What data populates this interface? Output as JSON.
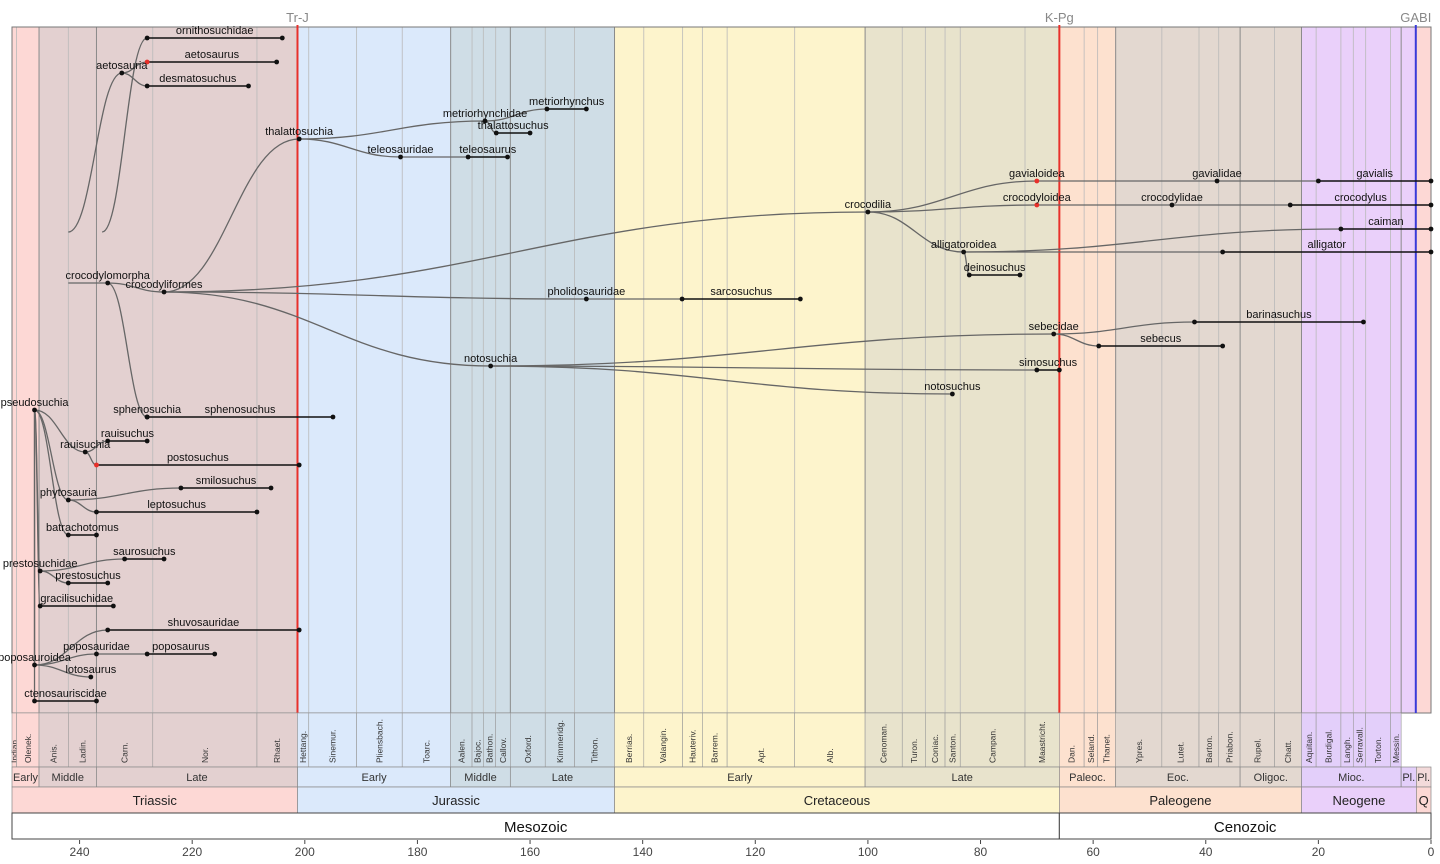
{
  "axis": {
    "ticks": [
      240,
      220,
      200,
      180,
      160,
      140,
      120,
      100,
      80,
      60,
      40,
      20,
      0
    ],
    "range_ma": [
      252.0,
      0.0
    ]
  },
  "events": [
    {
      "label": "Tr-J",
      "age": 201.3,
      "color": "#e8302a"
    },
    {
      "label": "K-Pg",
      "age": 66.0,
      "color": "#e8302a"
    },
    {
      "label": "GABI",
      "age": 2.7,
      "color": "#3a3ad8"
    }
  ],
  "eras": [
    {
      "label": "Mesozoic",
      "start": 252.0,
      "end": 66.0
    },
    {
      "label": "Cenozoic",
      "start": 66.0,
      "end": 0
    }
  ],
  "periods": [
    {
      "label": "Triassic",
      "start": 252.0,
      "end": 201.3,
      "color": "#fdd8d5",
      "tint": "#e3d0d0"
    },
    {
      "label": "Jurassic",
      "start": 201.3,
      "end": 145.0,
      "color": "#dbe9fb",
      "tint": "#cfdde6"
    },
    {
      "label": "Cretaceous",
      "start": 145.0,
      "end": 66.0,
      "color": "#fdf4cc",
      "tint": "#e8e3cc"
    },
    {
      "label": "Paleogene",
      "start": 66.0,
      "end": 23.0,
      "color": "#fde1cf",
      "tint": "#e3d8d0"
    },
    {
      "label": "Neogene",
      "start": 23.0,
      "end": 2.6,
      "color": "#ead0fa",
      "tint": "#e3cffa"
    },
    {
      "label": "Q",
      "start": 2.6,
      "end": 0,
      "color": "#fdd8d5",
      "tint": "#f3dada"
    }
  ],
  "epochs": [
    {
      "label": "Early",
      "start": 252.0,
      "end": 247.2,
      "color": "#fdd8d5"
    },
    {
      "label": "Middle",
      "start": 247.2,
      "end": 237.0,
      "color": "#e3d0d0"
    },
    {
      "label": "Late",
      "start": 237.0,
      "end": 201.3,
      "color": "#e3d0d0"
    },
    {
      "label": "Early",
      "start": 201.3,
      "end": 174.1,
      "color": "#dbe9fb"
    },
    {
      "label": "Middle",
      "start": 174.1,
      "end": 163.5,
      "color": "#cfdde6"
    },
    {
      "label": "Late",
      "start": 163.5,
      "end": 145.0,
      "color": "#cfdde6"
    },
    {
      "label": "Early",
      "start": 145.0,
      "end": 100.5,
      "color": "#fdf4cc"
    },
    {
      "label": "Late",
      "start": 100.5,
      "end": 66.0,
      "color": "#e8e3cc"
    },
    {
      "label": "Paleoc.",
      "start": 66.0,
      "end": 56.0,
      "color": "#fde1cf"
    },
    {
      "label": "Eoc.",
      "start": 56.0,
      "end": 33.9,
      "color": "#e3d8d0"
    },
    {
      "label": "Oligoc.",
      "start": 33.9,
      "end": 23.0,
      "color": "#e3d8d0"
    },
    {
      "label": "Mioc.",
      "start": 23.0,
      "end": 5.3,
      "color": "#e3cffa"
    },
    {
      "label": "Pl.",
      "start": 5.3,
      "end": 2.6,
      "color": "#e3cffa"
    },
    {
      "label": "Pl.",
      "start": 2.6,
      "end": 0,
      "color": "#f3dada"
    }
  ],
  "stages": [
    {
      "label": "Indian",
      "start": 252.0,
      "end": 251.2
    },
    {
      "label": "Olenek.",
      "start": 251.2,
      "end": 247.2
    },
    {
      "label": "Anis.",
      "start": 247.2,
      "end": 242.0
    },
    {
      "label": "Ladin.",
      "start": 242.0,
      "end": 237.0
    },
    {
      "label": "Carn.",
      "start": 237.0,
      "end": 227.0
    },
    {
      "label": "Nor.",
      "start": 227.0,
      "end": 208.5
    },
    {
      "label": "Rhaet.",
      "start": 208.5,
      "end": 201.3
    },
    {
      "label": "Hettang.",
      "start": 201.3,
      "end": 199.3
    },
    {
      "label": "Sinemur.",
      "start": 199.3,
      "end": 190.8
    },
    {
      "label": "Pliensbach.",
      "start": 190.8,
      "end": 182.7
    },
    {
      "label": "Toarc.",
      "start": 182.7,
      "end": 174.1
    },
    {
      "label": "Aalen.",
      "start": 174.1,
      "end": 170.3
    },
    {
      "label": "Bajoc.",
      "start": 170.3,
      "end": 168.3
    },
    {
      "label": "Bathon.",
      "start": 168.3,
      "end": 166.1
    },
    {
      "label": "Callov.",
      "start": 166.1,
      "end": 163.5
    },
    {
      "label": "Oxford.",
      "start": 163.5,
      "end": 157.3
    },
    {
      "label": "Kimmeridg.",
      "start": 157.3,
      "end": 152.1
    },
    {
      "label": "Tithon.",
      "start": 152.1,
      "end": 145.0
    },
    {
      "label": "Berrias.",
      "start": 145.0,
      "end": 139.8
    },
    {
      "label": "Valangin.",
      "start": 139.8,
      "end": 132.9
    },
    {
      "label": "Hauteriv.",
      "start": 132.9,
      "end": 129.4
    },
    {
      "label": "Barrem.",
      "start": 129.4,
      "end": 125.0
    },
    {
      "label": "Apt.",
      "start": 125.0,
      "end": 113.0
    },
    {
      "label": "Alb.",
      "start": 113.0,
      "end": 100.5
    },
    {
      "label": "Cenoman.",
      "start": 100.5,
      "end": 93.9
    },
    {
      "label": "Turon.",
      "start": 93.9,
      "end": 89.8
    },
    {
      "label": "Coniac.",
      "start": 89.8,
      "end": 86.3
    },
    {
      "label": "Santon.",
      "start": 86.3,
      "end": 83.6
    },
    {
      "label": "Campan.",
      "start": 83.6,
      "end": 72.1
    },
    {
      "label": "Maastricht.",
      "start": 72.1,
      "end": 66.0
    },
    {
      "label": "Dan.",
      "start": 66.0,
      "end": 61.6
    },
    {
      "label": "Seland.",
      "start": 61.6,
      "end": 59.2
    },
    {
      "label": "Thanet.",
      "start": 59.2,
      "end": 56.0
    },
    {
      "label": "Ypres.",
      "start": 56.0,
      "end": 47.8
    },
    {
      "label": "Lutet.",
      "start": 47.8,
      "end": 41.2
    },
    {
      "label": "Barton.",
      "start": 41.2,
      "end": 37.7
    },
    {
      "label": "Priabon.",
      "start": 37.7,
      "end": 33.9
    },
    {
      "label": "Rupel.",
      "start": 33.9,
      "end": 27.8
    },
    {
      "label": "Chatt.",
      "start": 27.8,
      "end": 23.0
    },
    {
      "label": "Aquitan.",
      "start": 23.0,
      "end": 20.4
    },
    {
      "label": "Burdigal.",
      "start": 20.4,
      "end": 16.0
    },
    {
      "label": "Langh.",
      "start": 16.0,
      "end": 13.8
    },
    {
      "label": "Serravall.",
      "start": 13.8,
      "end": 11.6
    },
    {
      "label": "Torton.",
      "start": 11.6,
      "end": 7.2
    },
    {
      "label": "Messin.",
      "start": 7.2,
      "end": 5.3
    }
  ],
  "taxa": [
    {
      "label": "pseudosuchia",
      "first": 248.0,
      "last": 248.0,
      "row": 410
    },
    {
      "label": "ornithosuchidae",
      "first": 228.0,
      "last": 204.0,
      "row": 38,
      "parent_age": 236.0,
      "parent_row": 232
    },
    {
      "label": "aetosauria",
      "first": 232.5,
      "last": 232.5,
      "row": 73,
      "parent_age": 242.0,
      "parent_row": 232
    },
    {
      "label": "aetosaurus",
      "first": 228.0,
      "last": 205.0,
      "row": 62,
      "parent_age": 232.5,
      "parent_row": 73,
      "node_color": "#e8302a"
    },
    {
      "label": "desmatosuchus",
      "first": 228.0,
      "last": 210.0,
      "row": 86,
      "parent_age": 232.5,
      "parent_row": 73
    },
    {
      "label": "crocodylomorpha",
      "first": 235.0,
      "last": 235.0,
      "row": 283,
      "parent_age": 242.0,
      "parent_row": 283
    },
    {
      "label": "crocodyliformes",
      "first": 225.0,
      "last": 225.0,
      "row": 292,
      "parent_age": 235.0,
      "parent_row": 283
    },
    {
      "label": "sphenosuchia",
      "first": 228.0,
      "last": 228.0,
      "row": 417,
      "parent_age": 235.0,
      "parent_row": 283
    },
    {
      "label": "sphenosuchus",
      "first": 228.0,
      "last": 195.0,
      "row": 417,
      "parent_age": 228.0,
      "parent_row": 417
    },
    {
      "label": "thalattosuchia",
      "first": 201.0,
      "last": 201.0,
      "row": 139,
      "parent_age": 225.0,
      "parent_row": 292
    },
    {
      "label": "metriorhynchidae",
      "first": 168.0,
      "last": 168.0,
      "row": 121,
      "parent_age": 201.0,
      "parent_row": 139
    },
    {
      "label": "metriorhynchus",
      "first": 157.0,
      "last": 150.0,
      "row": 109,
      "parent_age": 168.0,
      "parent_row": 121
    },
    {
      "label": "thalattosuchus",
      "first": 166.0,
      "last": 160.0,
      "row": 133,
      "parent_age": 168.0,
      "parent_row": 121
    },
    {
      "label": "teleosauridae",
      "first": 183.0,
      "last": 183.0,
      "row": 157,
      "parent_age": 201.0,
      "parent_row": 139
    },
    {
      "label": "teleosaurus",
      "first": 171.0,
      "last": 164.0,
      "row": 157,
      "parent_age": 183.0,
      "parent_row": 157
    },
    {
      "label": "crocodilia",
      "first": 100.0,
      "last": 100.0,
      "row": 212,
      "parent_age": 225.0,
      "parent_row": 292
    },
    {
      "label": "gavialoidea",
      "first": 70.0,
      "last": 70.0,
      "row": 181,
      "parent_age": 100.0,
      "parent_row": 212,
      "node_color": "#e8302a"
    },
    {
      "label": "gavialidae",
      "first": 38.0,
      "last": 38.0,
      "row": 181,
      "parent_age": 70.0,
      "parent_row": 181
    },
    {
      "label": "gavialis",
      "first": 20.0,
      "last": 0.0,
      "row": 181,
      "parent_age": 38.0,
      "parent_row": 181
    },
    {
      "label": "crocodyloidea",
      "first": 70.0,
      "last": 70.0,
      "row": 205,
      "parent_age": 100.0,
      "parent_row": 212,
      "node_color": "#e8302a"
    },
    {
      "label": "crocodylidae",
      "first": 46.0,
      "last": 46.0,
      "row": 205,
      "parent_age": 70.0,
      "parent_row": 205
    },
    {
      "label": "crocodylus",
      "first": 25.0,
      "last": 0.0,
      "row": 205,
      "parent_age": 46.0,
      "parent_row": 205
    },
    {
      "label": "alligatoroidea",
      "first": 83.0,
      "last": 83.0,
      "row": 252,
      "parent_age": 100.0,
      "parent_row": 212
    },
    {
      "label": "caiman",
      "first": 16.0,
      "last": 0.0,
      "row": 229,
      "parent_age": 83.0,
      "parent_row": 252
    },
    {
      "label": "alligator",
      "first": 37.0,
      "last": 0.0,
      "row": 252,
      "parent_age": 83.0,
      "parent_row": 252
    },
    {
      "label": "deinosuchus",
      "first": 82.0,
      "last": 73.0,
      "row": 275,
      "parent_age": 83.0,
      "parent_row": 252
    },
    {
      "label": "pholidosauridae",
      "first": 150.0,
      "last": 150.0,
      "row": 299,
      "parent_age": 225.0,
      "parent_row": 292
    },
    {
      "label": "sarcosuchus",
      "first": 133.0,
      "last": 112.0,
      "row": 299,
      "parent_age": 150.0,
      "parent_row": 299
    },
    {
      "label": "notosuchia",
      "first": 167.0,
      "last": 167.0,
      "row": 366,
      "parent_age": 225.0,
      "parent_row": 292
    },
    {
      "label": "sebecidae",
      "first": 67.0,
      "last": 67.0,
      "row": 334,
      "parent_age": 167.0,
      "parent_row": 366
    },
    {
      "label": "barinasuchus",
      "first": 42.0,
      "last": 12.0,
      "row": 322,
      "parent_age": 67.0,
      "parent_row": 334
    },
    {
      "label": "sebecus",
      "first": 59.0,
      "last": 37.0,
      "row": 346,
      "parent_age": 67.0,
      "parent_row": 334
    },
    {
      "label": "simosuchus",
      "first": 70.0,
      "last": 66.0,
      "row": 370,
      "parent_age": 167.0,
      "parent_row": 366
    },
    {
      "label": "notosuchus",
      "first": 85.0,
      "last": 85.0,
      "row": 394,
      "parent_age": 167.0,
      "parent_row": 366
    },
    {
      "label": "rauisuchia",
      "first": 239.0,
      "last": 239.0,
      "row": 452,
      "parent_age": 248.0,
      "parent_row": 410
    },
    {
      "label": "rauisuchus",
      "first": 235.0,
      "last": 228.0,
      "row": 441,
      "parent_age": 239.0,
      "parent_row": 452
    },
    {
      "label": "postosuchus",
      "first": 237.0,
      "last": 201.0,
      "row": 465,
      "parent_age": 239.0,
      "parent_row": 452,
      "node_color": "#e8302a"
    },
    {
      "label": "phytosauria",
      "first": 242.0,
      "last": 242.0,
      "row": 500,
      "parent_age": 248.0,
      "parent_row": 410
    },
    {
      "label": "smilosuchus",
      "first": 222.0,
      "last": 206.0,
      "row": 488,
      "parent_age": 242.0,
      "parent_row": 500
    },
    {
      "label": "leptosuchus",
      "first": 237.0,
      "last": 208.5,
      "row": 512,
      "parent_age": 242.0,
      "parent_row": 500
    },
    {
      "label": "batrachotomus",
      "first": 242.0,
      "last": 237.0,
      "row": 535,
      "parent_age": 248.0,
      "parent_row": 410
    },
    {
      "label": "prestosuchidae",
      "first": 247.0,
      "last": 247.0,
      "row": 571,
      "parent_age": 248.0,
      "parent_row": 410
    },
    {
      "label": "saurosuchus",
      "first": 232.0,
      "last": 225.0,
      "row": 559,
      "parent_age": 247.0,
      "parent_row": 571
    },
    {
      "label": "prestosuchus",
      "first": 242.0,
      "last": 235.0,
      "row": 583,
      "parent_age": 247.0,
      "parent_row": 571
    },
    {
      "label": "gracilisuchidae",
      "first": 247.0,
      "last": 234.0,
      "row": 606,
      "parent_age": 248.0,
      "parent_row": 410
    },
    {
      "label": "poposauroidea",
      "first": 248.0,
      "last": 248.0,
      "row": 665,
      "parent_age": 248.0,
      "parent_row": 410
    },
    {
      "label": "shuvosauridae",
      "first": 235.0,
      "last": 201.0,
      "row": 630,
      "parent_age": 248.0,
      "parent_row": 665
    },
    {
      "label": "poposauridae",
      "first": 237.0,
      "last": 237.0,
      "row": 654,
      "parent_age": 248.0,
      "parent_row": 665
    },
    {
      "label": "poposaurus",
      "first": 228.0,
      "last": 216.0,
      "row": 654,
      "parent_age": 237.0,
      "parent_row": 654
    },
    {
      "label": "lotosaurus",
      "first": 238.0,
      "last": 238.0,
      "row": 677,
      "parent_age": 248.0,
      "parent_row": 665
    },
    {
      "label": "ctenosauriscidae",
      "first": 248.0,
      "last": 237.0,
      "row": 701,
      "parent_age": 248.0,
      "parent_row": 410
    }
  ]
}
